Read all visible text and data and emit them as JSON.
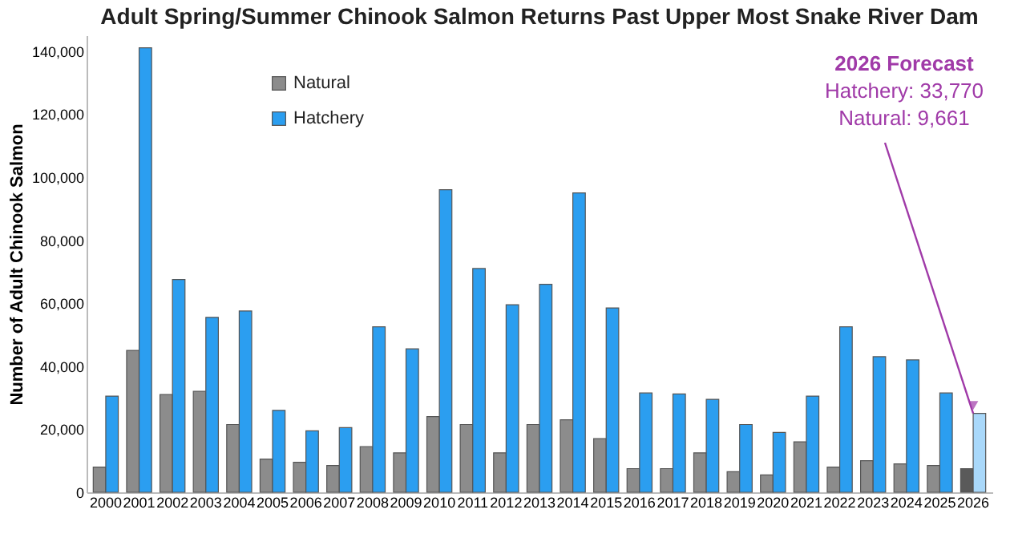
{
  "chart_data": {
    "type": "bar",
    "title": "Adult Spring/Summer Chinook Salmon Returns Past Upper Most Snake River Dam",
    "ylabel": "Number of Adult Chinook Salmon",
    "categories": [
      "2000",
      "2001",
      "2002",
      "2003",
      "2004",
      "2005",
      "2006",
      "2007",
      "2008",
      "2009",
      "2010",
      "2011",
      "2012",
      "2013",
      "2014",
      "2015",
      "2016",
      "2017",
      "2018",
      "2019",
      "2020",
      "2021",
      "2022",
      "2023",
      "2024",
      "2025",
      "2026"
    ],
    "series": [
      {
        "name": "Natural",
        "color": "#8c8c8c",
        "colors": [
          "#8c8c8c",
          "#8c8c8c",
          "#8c8c8c",
          "#8c8c8c",
          "#8c8c8c",
          "#8c8c8c",
          "#8c8c8c",
          "#8c8c8c",
          "#8c8c8c",
          "#8c8c8c",
          "#8c8c8c",
          "#8c8c8c",
          "#8c8c8c",
          "#8c8c8c",
          "#8c8c8c",
          "#8c8c8c",
          "#8c8c8c",
          "#8c8c8c",
          "#8c8c8c",
          "#8c8c8c",
          "#8c8c8c",
          "#8c8c8c",
          "#8c8c8c",
          "#8c8c8c",
          "#8c8c8c",
          "#8c8c8c",
          "#5a5a5a"
        ],
        "values": [
          8000,
          45000,
          31000,
          32000,
          21500,
          10500,
          9500,
          8500,
          14500,
          12500,
          24000,
          21500,
          12500,
          21500,
          23000,
          17000,
          7500,
          7500,
          12500,
          6500,
          5500,
          16000,
          8000,
          10000,
          9000,
          8500,
          7500
        ]
      },
      {
        "name": "Hatchery",
        "color": "#2b9ef0",
        "colors": [
          "#2b9ef0",
          "#2b9ef0",
          "#2b9ef0",
          "#2b9ef0",
          "#2b9ef0",
          "#2b9ef0",
          "#2b9ef0",
          "#2b9ef0",
          "#2b9ef0",
          "#2b9ef0",
          "#2b9ef0",
          "#2b9ef0",
          "#2b9ef0",
          "#2b9ef0",
          "#2b9ef0",
          "#2b9ef0",
          "#2b9ef0",
          "#2b9ef0",
          "#2b9ef0",
          "#2b9ef0",
          "#2b9ef0",
          "#2b9ef0",
          "#2b9ef0",
          "#2b9ef0",
          "#2b9ef0",
          "#2b9ef0",
          "#a9d8fa"
        ],
        "values": [
          30500,
          141000,
          67500,
          55500,
          57500,
          26000,
          19500,
          20500,
          52500,
          45500,
          96000,
          71000,
          59500,
          66000,
          95000,
          58500,
          31500,
          31200,
          29500,
          21500,
          19000,
          30500,
          52500,
          43000,
          42000,
          31500,
          25000
        ]
      }
    ],
    "ylim": [
      0,
      145000
    ],
    "yticks": [
      {
        "value": 0,
        "label": "0"
      },
      {
        "value": 20000,
        "label": "20,000"
      },
      {
        "value": 40000,
        "label": "40,000"
      },
      {
        "value": 60000,
        "label": "60,000"
      },
      {
        "value": 80000,
        "label": "80,000"
      },
      {
        "value": 100000,
        "label": "100,000"
      },
      {
        "value": 120000,
        "label": "120,000"
      },
      {
        "value": 140000,
        "label": "140,000"
      }
    ],
    "grid": false,
    "legend": "top left",
    "annotations": [
      {
        "text": "2026 Forecast\nHatchery: 33,770\nNatural: 9,661",
        "x": "2026",
        "y": 25000
      }
    ]
  }
}
